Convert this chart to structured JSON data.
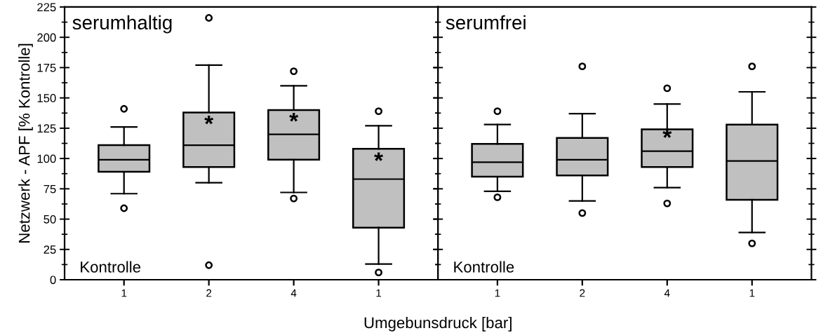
{
  "chart_data": [
    {
      "type": "box",
      "title": "serumhaltig",
      "xlabel": "Umgebunsdruck [bar]",
      "ylabel": "Netzwerk - APF [% Kontrolle]",
      "categories": [
        "1",
        "2",
        "4",
        "1"
      ],
      "color": "#c0c0c0",
      "boxes": [
        {
          "low": 71,
          "q1": 89,
          "median": 99,
          "q3": 111,
          "high": 126,
          "outliers": [
            141,
            59
          ]
        },
        {
          "low": 80,
          "q1": 93,
          "median": 111,
          "q3": 138,
          "high": 177,
          "outliers": [
            216,
            12
          ]
        },
        {
          "low": 72,
          "q1": 99,
          "median": 120,
          "q3": 140,
          "high": 160,
          "outliers": [
            172,
            67
          ]
        },
        {
          "low": 13,
          "q1": 43,
          "median": 83,
          "q3": 108,
          "high": 127,
          "outliers": [
            139,
            6
          ]
        }
      ],
      "ylim": [
        0,
        225
      ],
      "yticks": [
        0,
        25,
        50,
        75,
        100,
        125,
        150,
        175,
        200,
        225
      ],
      "grid": false,
      "annotations": [
        "Kontrolle",
        "*",
        "*",
        "*"
      ]
    },
    {
      "type": "box",
      "title": "serumfrei",
      "categories": [
        "1",
        "2",
        "4",
        "1"
      ],
      "color": "#c0c0c0",
      "boxes": [
        {
          "low": 73,
          "q1": 85,
          "median": 97,
          "q3": 112,
          "high": 128,
          "outliers": [
            139,
            68
          ]
        },
        {
          "low": 65,
          "q1": 86,
          "median": 99,
          "q3": 117,
          "high": 137,
          "outliers": [
            176,
            55
          ]
        },
        {
          "low": 76,
          "q1": 93,
          "median": 106,
          "q3": 124,
          "high": 145,
          "outliers": [
            158,
            63
          ]
        },
        {
          "low": 39,
          "q1": 66,
          "median": 98,
          "q3": 128,
          "high": 155,
          "outliers": [
            176,
            30
          ]
        }
      ],
      "ylim": [
        0,
        225
      ],
      "yticks": [
        0,
        25,
        50,
        75,
        100,
        125,
        150,
        175,
        200,
        225
      ],
      "tick_labels": "x",
      "grid": false,
      "annotations": [
        "Kontrolle",
        "*"
      ]
    }
  ]
}
